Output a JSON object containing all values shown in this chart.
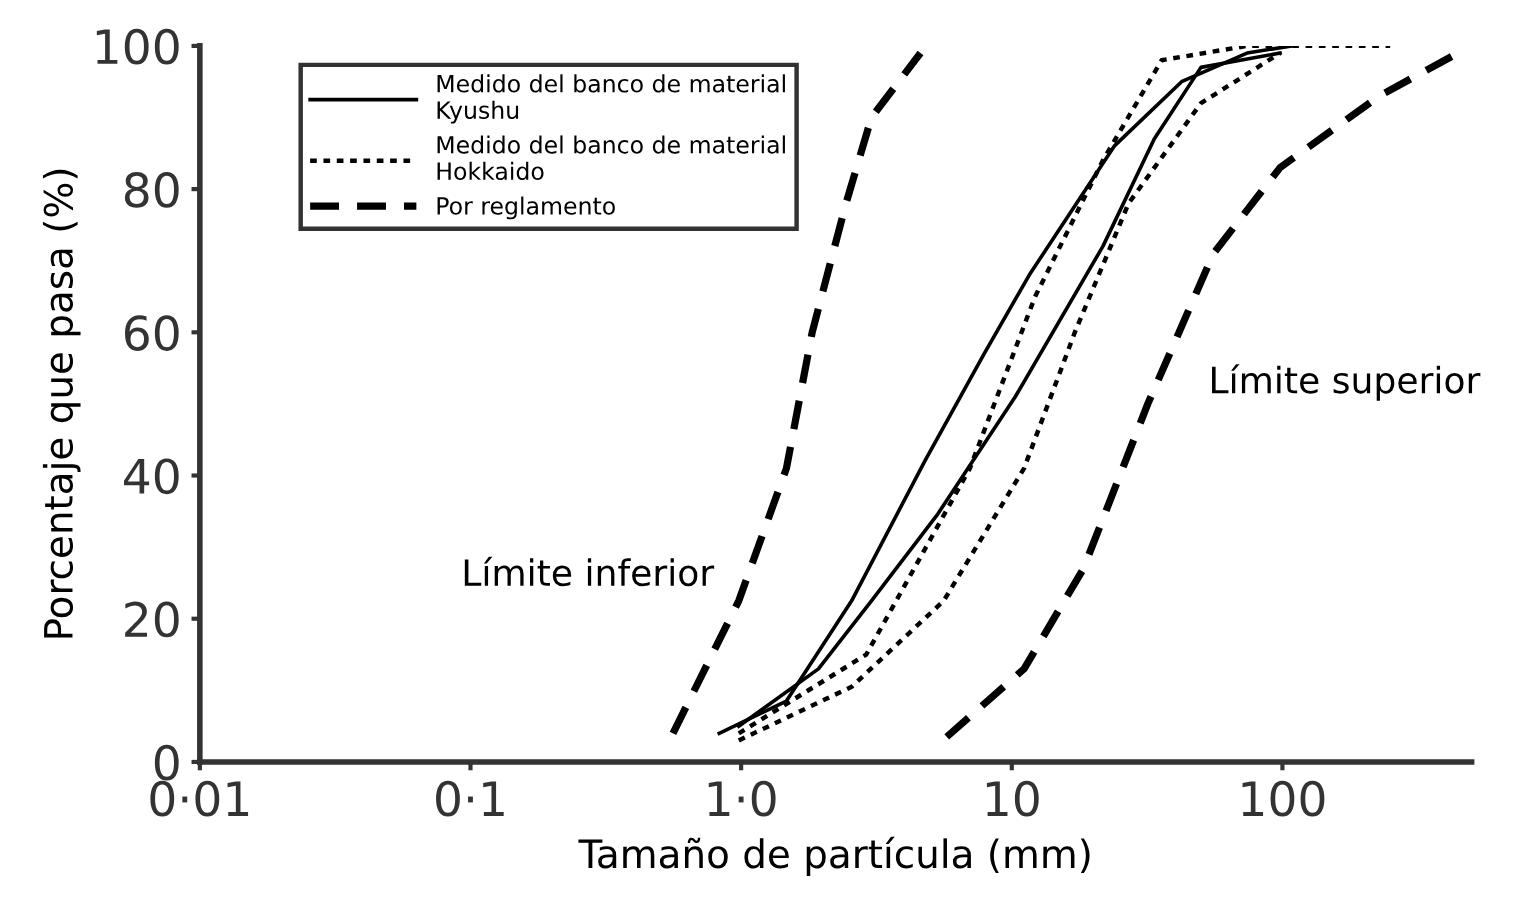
{
  "chart_data": {
    "type": "line",
    "xlabel": "Tamaño de partícula (mm)",
    "ylabel": "Porcentaje que pasa (%)",
    "log": "x",
    "xlim": [
      0.01,
      500
    ],
    "xticks": [
      {
        "value": 0.01,
        "label": "0·01"
      },
      {
        "value": 0.1,
        "label": "0·1"
      },
      {
        "value": 1,
        "label": "1·0"
      },
      10,
      100
    ],
    "ylim": [
      0,
      100
    ],
    "yticks": [
      0,
      20,
      40,
      60,
      80,
      100
    ],
    "grid": false,
    "legend": "top left",
    "marker": "none",
    "series": [
      {
        "name": "Medido del banco de material\nKyushu",
        "color": "#000000",
        "line_style": "solid",
        "x": [
          0.83,
          1.47,
          2.56,
          4.77,
          7.9,
          11.6,
          23.9,
          42.4,
          74,
          108
        ],
        "values": [
          4,
          8.5,
          22.5,
          42,
          57,
          68,
          86,
          95,
          99,
          100
        ]
      },
      {
        "color": "#000000",
        "line_style": "solid",
        "x": [
          0.98,
          1.93,
          3.03,
          5.3,
          10.3,
          21.7,
          33.6,
          50,
          98
        ],
        "values": [
          5,
          13,
          22.5,
          34.5,
          51,
          72,
          87,
          97,
          99
        ]
      },
      {
        "name": "Medido del banco de material\nHokkaido",
        "color": "#000000",
        "line_style": "dotted",
        "x": [
          0.98,
          2.9,
          7,
          12.2,
          21.7,
          35.8,
          74,
          250
        ],
        "values": [
          4,
          15,
          41,
          65,
          84,
          98,
          100,
          100
        ]
      },
      {
        "color": "#000000",
        "line_style": "dotted",
        "x": [
          0.98,
          2.56,
          5.6,
          11.1,
          17.1,
          27,
          50,
          98
        ],
        "values": [
          3,
          10.5,
          22.5,
          41,
          60,
          78,
          92,
          99
        ]
      },
      {
        "name": "Por reglamento",
        "color": "#000000",
        "line_style": "dashed",
        "x": [
          0.56,
          0.98,
          1.47,
          1.83,
          2.44,
          3.03,
          4.6
        ],
        "values": [
          4,
          22.5,
          41,
          60,
          78,
          90,
          99
        ]
      },
      {
        "color": "#000000",
        "line_style": "dashed",
        "x": [
          5.75,
          11.1,
          18.4,
          31.8,
          55.6,
          98,
          228,
          445
        ],
        "values": [
          3.5,
          13,
          27,
          50,
          71,
          83,
          93,
          99
        ]
      }
    ],
    "annotations": [
      "Límite inferior",
      "Límite superior"
    ]
  }
}
